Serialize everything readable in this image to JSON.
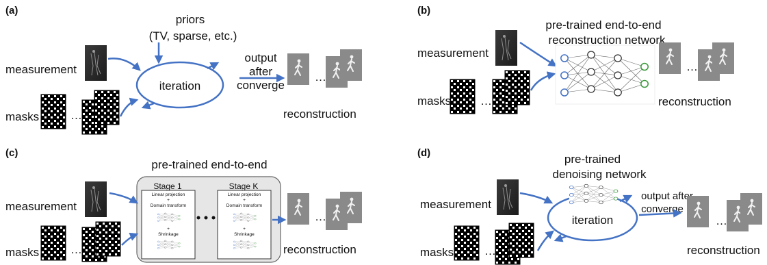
{
  "panels": {
    "a": {
      "label": "(a)",
      "priors": "priors",
      "priors_detail": "(TV, sparse, etc.)",
      "measurement": "measurement",
      "masks": "masks",
      "iteration": "iteration",
      "output_line1": "output",
      "output_line2": "after",
      "output_line3": "converge",
      "reconstruction": "reconstruction"
    },
    "b": {
      "label": "(b)",
      "title_line1": "pre-trained end-to-end",
      "title_line2": "reconstruction network",
      "measurement": "measurement",
      "masks": "masks",
      "reconstruction": "reconstruction"
    },
    "c": {
      "label": "(c)",
      "title": "pre-trained end-to-end",
      "stage1": "Stage 1",
      "stageK": "Stage K",
      "linear_projection": "Linear projection",
      "plus": "+",
      "domain_transform": "Domain transform",
      "shrinkage": "Shrinkage",
      "measurement": "measurement",
      "masks": "masks",
      "reconstruction": "reconstruction"
    },
    "d": {
      "label": "(d)",
      "title_line1": "pre-trained",
      "title_line2": "denoising network",
      "measurement": "measurement",
      "masks": "masks",
      "iteration": "iteration",
      "output_line1": "output after",
      "output_line2": "converge",
      "reconstruction": "reconstruction"
    }
  },
  "ellipsis": "…",
  "colors": {
    "arrow": "#4472c4",
    "frame": "#8c8c8c",
    "stage_bg": "#e6e6e6",
    "node_blue": "#4472c4",
    "node_green": "#3a9a3a"
  }
}
